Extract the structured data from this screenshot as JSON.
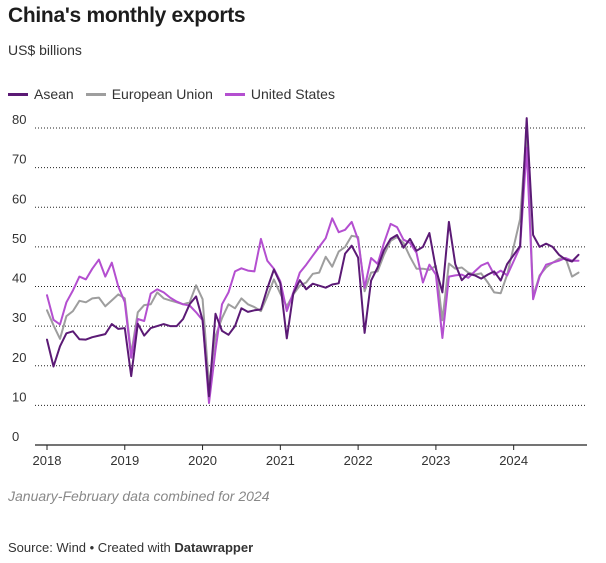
{
  "title": "China's monthly exports",
  "subtitle": "US$ billions",
  "note": "January-February data combined for 2024",
  "footer": {
    "source_text": "Source: Wind • Created with ",
    "brand": "Datawrapper"
  },
  "colors": {
    "asean": "#5b1a75",
    "eu": "#9e9e9e",
    "us": "#b44fd0",
    "grid": "#222222"
  },
  "chart_data": {
    "type": "line",
    "title": "China's monthly exports",
    "subtitle": "US$ billions",
    "xlabel": "",
    "ylabel": "",
    "ylim": [
      0,
      80
    ],
    "yticks": [
      0,
      10,
      20,
      30,
      40,
      50,
      60,
      70,
      80
    ],
    "xlim": [
      2018.0,
      2024.917
    ],
    "xticks": [
      2018,
      2019,
      2020,
      2021,
      2022,
      2023,
      2024
    ],
    "xtick_labels": [
      "2018",
      "2019",
      "2020",
      "2021",
      "2022",
      "2023",
      "2024"
    ],
    "grid": true,
    "legend_placement": "top-left",
    "note": "January-February data combined for 2024",
    "series": [
      {
        "name": "Asean",
        "color": "#5b1a75",
        "x": [
          2018.0,
          2018.083,
          2018.167,
          2018.25,
          2018.333,
          2018.417,
          2018.5,
          2018.583,
          2018.667,
          2018.75,
          2018.833,
          2018.917,
          2019.0,
          2019.083,
          2019.167,
          2019.25,
          2019.333,
          2019.417,
          2019.5,
          2019.583,
          2019.667,
          2019.75,
          2019.833,
          2019.917,
          2020.0,
          2020.083,
          2020.167,
          2020.25,
          2020.333,
          2020.417,
          2020.5,
          2020.583,
          2020.667,
          2020.75,
          2020.833,
          2020.917,
          2021.0,
          2021.083,
          2021.167,
          2021.25,
          2021.333,
          2021.417,
          2021.5,
          2021.583,
          2021.667,
          2021.75,
          2021.833,
          2021.917,
          2022.0,
          2022.083,
          2022.167,
          2022.25,
          2022.333,
          2022.417,
          2022.5,
          2022.583,
          2022.667,
          2022.75,
          2022.833,
          2022.917,
          2023.0,
          2023.083,
          2023.167,
          2023.25,
          2023.333,
          2023.417,
          2023.5,
          2023.583,
          2023.667,
          2023.75,
          2023.833,
          2023.917,
          2024.083,
          2024.167,
          2024.25,
          2024.333,
          2024.417,
          2024.5,
          2024.583,
          2024.667,
          2024.75,
          2024.833
        ],
        "values": [
          26.6,
          19.8,
          24.9,
          28.2,
          28.7,
          26.7,
          26.6,
          27.2,
          27.6,
          28.0,
          30.5,
          29.3,
          29.5,
          17.4,
          30.6,
          27.6,
          29.5,
          30.0,
          30.5,
          30.0,
          30.0,
          31.8,
          35.5,
          37.5,
          31.5,
          12.3,
          33.1,
          28.8,
          27.8,
          30.0,
          34.5,
          33.6,
          34.0,
          34.2,
          39.5,
          44.3,
          40.8,
          26.9,
          38.2,
          41.6,
          39.3,
          40.7,
          40.2,
          39.7,
          40.5,
          40.8,
          48.3,
          50.3,
          47.3,
          28.3,
          41.5,
          44.8,
          49.2,
          52.0,
          53.0,
          49.8,
          52.0,
          49.0,
          50.0,
          53.5,
          44.5,
          38.5,
          56.3,
          45.6,
          41.6,
          43.2,
          42.8,
          42.0,
          43.0,
          43.8,
          41.5,
          45.7,
          50.2,
          82.5,
          53.0,
          50.0,
          50.8,
          50.0,
          48.0,
          46.8,
          46.3,
          48.0
        ]
      },
      {
        "name": "European Union",
        "color": "#9e9e9e",
        "x": [
          2018.0,
          2018.083,
          2018.167,
          2018.25,
          2018.333,
          2018.417,
          2018.5,
          2018.583,
          2018.667,
          2018.75,
          2018.833,
          2018.917,
          2019.0,
          2019.083,
          2019.167,
          2019.25,
          2019.333,
          2019.417,
          2019.5,
          2019.583,
          2019.667,
          2019.75,
          2019.833,
          2019.917,
          2020.0,
          2020.083,
          2020.167,
          2020.25,
          2020.333,
          2020.417,
          2020.5,
          2020.583,
          2020.667,
          2020.75,
          2020.833,
          2020.917,
          2021.0,
          2021.083,
          2021.167,
          2021.25,
          2021.333,
          2021.417,
          2021.5,
          2021.583,
          2021.667,
          2021.75,
          2021.833,
          2021.917,
          2022.0,
          2022.083,
          2022.167,
          2022.25,
          2022.333,
          2022.417,
          2022.5,
          2022.583,
          2022.667,
          2022.75,
          2022.833,
          2022.917,
          2023.0,
          2023.083,
          2023.167,
          2023.25,
          2023.333,
          2023.417,
          2023.5,
          2023.583,
          2023.667,
          2023.75,
          2023.833,
          2023.917,
          2024.083,
          2024.167,
          2024.25,
          2024.333,
          2024.417,
          2024.5,
          2024.583,
          2024.667,
          2024.75,
          2024.833
        ],
        "values": [
          34.0,
          30.2,
          26.8,
          32.5,
          33.8,
          36.4,
          36.0,
          37.0,
          37.2,
          35.0,
          36.5,
          38.0,
          37.0,
          23.0,
          33.5,
          35.3,
          35.5,
          38.5,
          37.0,
          36.5,
          36.0,
          35.5,
          36.0,
          40.3,
          36.8,
          15.0,
          27.5,
          32.0,
          35.5,
          34.5,
          37.0,
          35.5,
          34.8,
          33.8,
          37.5,
          41.8,
          38.2,
          35.0,
          38.0,
          40.2,
          41.0,
          43.2,
          43.5,
          47.5,
          45.0,
          48.8,
          50.0,
          52.8,
          52.5,
          38.8,
          43.5,
          43.8,
          48.0,
          51.5,
          52.5,
          51.0,
          47.5,
          44.5,
          44.5,
          44.2,
          45.2,
          31.5,
          45.8,
          44.5,
          44.8,
          43.5,
          43.0,
          43.3,
          41.0,
          38.5,
          38.3,
          43.0,
          57.0,
          79.5,
          37.5,
          42.8,
          44.8,
          46.0,
          47.0,
          47.2,
          42.5,
          43.5
        ]
      },
      {
        "name": "United States",
        "color": "#b44fd0",
        "x": [
          2018.0,
          2018.083,
          2018.167,
          2018.25,
          2018.333,
          2018.417,
          2018.5,
          2018.583,
          2018.667,
          2018.75,
          2018.833,
          2018.917,
          2019.0,
          2019.083,
          2019.167,
          2019.25,
          2019.333,
          2019.417,
          2019.5,
          2019.583,
          2019.667,
          2019.75,
          2019.833,
          2019.917,
          2020.0,
          2020.083,
          2020.167,
          2020.25,
          2020.333,
          2020.417,
          2020.5,
          2020.583,
          2020.667,
          2020.75,
          2020.833,
          2020.917,
          2021.0,
          2021.083,
          2021.167,
          2021.25,
          2021.333,
          2021.417,
          2021.5,
          2021.583,
          2021.667,
          2021.75,
          2021.833,
          2021.917,
          2022.0,
          2022.083,
          2022.167,
          2022.25,
          2022.333,
          2022.417,
          2022.5,
          2022.583,
          2022.667,
          2022.75,
          2022.833,
          2022.917,
          2023.0,
          2023.083,
          2023.167,
          2023.25,
          2023.333,
          2023.417,
          2023.5,
          2023.583,
          2023.667,
          2023.75,
          2023.833,
          2023.917,
          2024.083,
          2024.167,
          2024.25,
          2024.333,
          2024.417,
          2024.5,
          2024.583,
          2024.667,
          2024.75,
          2024.833
        ],
        "values": [
          37.8,
          31.6,
          30.4,
          36.0,
          39.0,
          42.5,
          41.8,
          44.5,
          46.8,
          42.5,
          46.0,
          40.0,
          36.0,
          22.0,
          31.8,
          31.3,
          38.2,
          39.3,
          38.5,
          37.2,
          36.2,
          35.5,
          35.2,
          33.5,
          31.5,
          10.6,
          24.0,
          35.5,
          38.5,
          43.8,
          44.6,
          44.0,
          43.8,
          52.0,
          46.5,
          44.5,
          41.3,
          33.8,
          38.5,
          43.5,
          45.5,
          47.8,
          50.0,
          52.2,
          57.2,
          53.7,
          54.3,
          56.3,
          51.8,
          39.7,
          47.2,
          45.7,
          51.0,
          55.8,
          55.0,
          51.8,
          51.0,
          48.5,
          41.0,
          45.5,
          43.0,
          27.0,
          42.5,
          42.8,
          43.0,
          42.2,
          43.8,
          45.3,
          46.0,
          43.0,
          44.0,
          42.8,
          50.0,
          75.0,
          36.8,
          42.5,
          45.5,
          46.0,
          46.5,
          47.2,
          46.5,
          46.5
        ]
      }
    ]
  }
}
